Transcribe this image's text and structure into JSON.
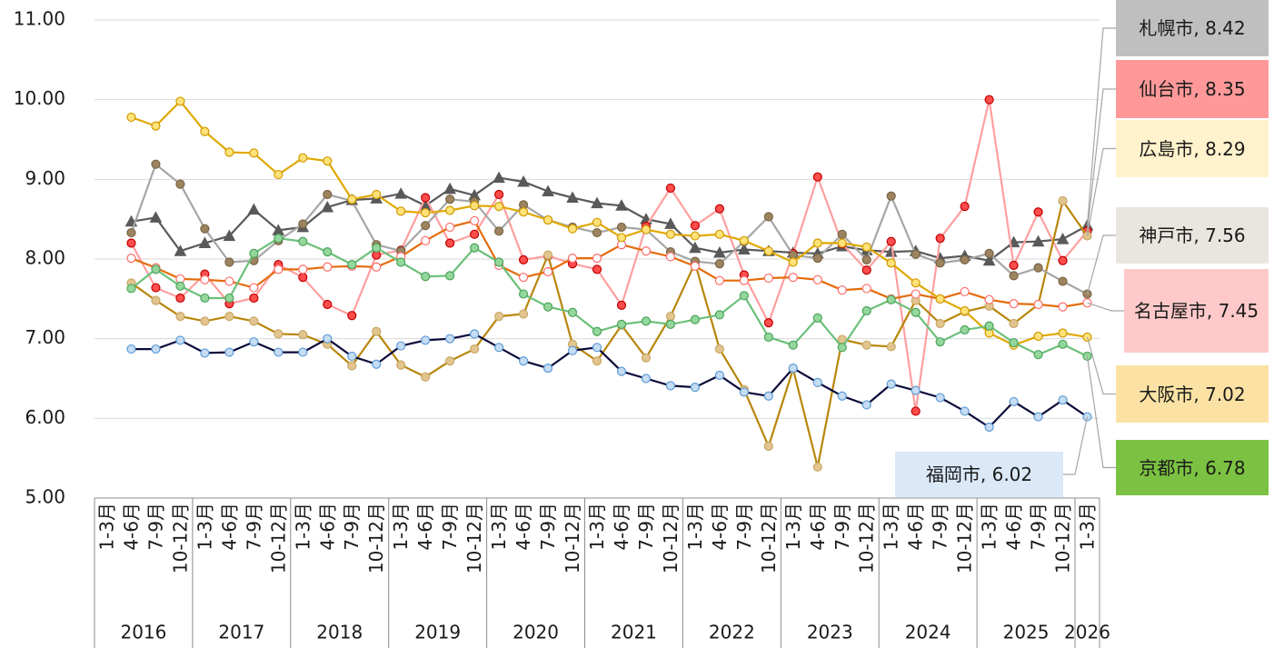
{
  "chart_data": {
    "type": "line",
    "categories": [
      "1-3月",
      "4-6月",
      "7-9月",
      "10-12月",
      "1-3月",
      "4-6月",
      "7-9月",
      "10-12月",
      "1-3月",
      "4-6月",
      "7-9月",
      "10-12月",
      "1-3月",
      "4-6月",
      "7-9月",
      "10-12月",
      "1-3月",
      "4-6月",
      "7-9月",
      "10-12月",
      "1-3月",
      "4-6月",
      "7-9月",
      "10-12月",
      "1-3月",
      "4-6月",
      "7-9月",
      "10-12月",
      "1-3月",
      "4-6月",
      "7-9月",
      "10-12月",
      "1-3月",
      "4-6月",
      "7-9月",
      "10-12月",
      "1-3月",
      "4-6月",
      "7-9月",
      "10-12月",
      "1-3月"
    ],
    "category_groups": [
      {
        "label": "2016",
        "size": 4
      },
      {
        "label": "2017",
        "size": 4
      },
      {
        "label": "2018",
        "size": 4
      },
      {
        "label": "2019",
        "size": 4
      },
      {
        "label": "2020",
        "size": 4
      },
      {
        "label": "2021",
        "size": 4
      },
      {
        "label": "2022",
        "size": 4
      },
      {
        "label": "2023",
        "size": 4
      },
      {
        "label": "2024",
        "size": 4
      },
      {
        "label": "2025",
        "size": 4
      },
      {
        "label": "2026",
        "size": 1
      }
    ],
    "ylim": [
      5,
      11
    ],
    "yticks": [
      {
        "value": 5,
        "label": "5.00"
      },
      {
        "value": 6,
        "label": "6.00"
      },
      {
        "value": 7,
        "label": "7.00"
      },
      {
        "value": 8,
        "label": "8.00"
      },
      {
        "value": 9,
        "label": "9.00"
      },
      {
        "value": 10,
        "label": "10.00"
      },
      {
        "value": 11,
        "label": "11.00"
      }
    ],
    "grid": true,
    "series": [
      {
        "name": "札幌市",
        "label": "札幌市, 8.42",
        "color": "#595959",
        "marker": "triangle",
        "marker_fill": "#595959",
        "marker_stroke": "#595959",
        "label_bg": "#bfbfbf",
        "values": [
          null,
          8.47,
          8.52,
          8.1,
          8.2,
          8.29,
          8.62,
          8.36,
          8.4,
          8.65,
          8.74,
          8.76,
          8.82,
          8.67,
          8.88,
          8.8,
          9.02,
          8.97,
          8.85,
          8.77,
          8.7,
          8.67,
          8.5,
          8.44,
          8.14,
          8.08,
          8.12,
          8.1,
          8.08,
          8.07,
          8.16,
          8.11,
          8.09,
          8.1,
          8.01,
          8.04,
          7.98,
          8.21,
          8.22,
          8.25,
          8.42
        ]
      },
      {
        "name": "仙台市",
        "label": "仙台市, 8.35",
        "color": "#ff9f9f",
        "marker": "circle",
        "marker_fill": "#ff4d4d",
        "marker_stroke": "#c00000",
        "label_bg": "#ff9999",
        "values": [
          null,
          8.2,
          7.64,
          7.51,
          7.81,
          7.44,
          7.51,
          7.93,
          7.77,
          7.43,
          7.29,
          8.05,
          8.11,
          8.77,
          8.2,
          8.31,
          8.81,
          7.99,
          8.04,
          7.94,
          7.87,
          7.42,
          8.41,
          8.89,
          8.42,
          8.63,
          7.8,
          7.2,
          8.07,
          9.03,
          8.19,
          7.86,
          8.22,
          6.09,
          8.26,
          8.66,
          10.0,
          7.92,
          8.59,
          7.98,
          8.35
        ]
      },
      {
        "name": "広島市",
        "label": "広島市, 8.29",
        "color": "#b8860b",
        "marker": "circle",
        "marker_fill": "#e2c48e",
        "marker_stroke": "#c8a868",
        "label_bg": "#fff2cc",
        "values": [
          null,
          7.7,
          7.48,
          7.28,
          7.22,
          7.28,
          7.22,
          7.06,
          7.05,
          6.93,
          6.66,
          7.09,
          6.67,
          6.52,
          6.72,
          6.87,
          7.28,
          7.31,
          8.05,
          6.93,
          6.72,
          7.17,
          6.76,
          7.28,
          7.95,
          6.87,
          6.36,
          5.65,
          6.62,
          5.39,
          6.99,
          6.92,
          6.9,
          7.48,
          7.19,
          7.34,
          7.41,
          7.19,
          7.43,
          8.73,
          8.29
        ]
      },
      {
        "name": "神戸市",
        "label": "神戸市, 7.56",
        "color": "#a6a6a6",
        "marker": "circle",
        "marker_fill": "#9c8460",
        "marker_stroke": "#7a6545",
        "label_bg": "#e9e6df",
        "values": [
          null,
          8.33,
          9.19,
          8.94,
          8.38,
          7.96,
          7.98,
          8.23,
          8.44,
          8.81,
          8.73,
          8.18,
          8.1,
          8.42,
          8.75,
          8.72,
          8.35,
          8.68,
          8.49,
          8.4,
          8.33,
          8.4,
          8.37,
          8.09,
          7.97,
          7.94,
          8.22,
          8.53,
          8.05,
          8.01,
          8.31,
          7.99,
          8.79,
          8.06,
          7.95,
          7.99,
          8.07,
          7.79,
          7.89,
          7.72,
          7.56
        ]
      },
      {
        "name": "名古屋市",
        "label": "名古屋市, 7.45",
        "color": "#e46c0a",
        "marker": "circle",
        "marker_fill": "#ffffff",
        "marker_stroke": "#ff6b6b",
        "label_bg": "#ffc9c9",
        "values": [
          null,
          8.01,
          7.89,
          7.75,
          7.74,
          7.72,
          7.64,
          7.87,
          7.87,
          7.9,
          7.91,
          7.9,
          8.03,
          8.23,
          8.4,
          8.48,
          7.92,
          7.77,
          7.84,
          8.01,
          8.01,
          8.18,
          8.1,
          8.03,
          7.91,
          7.73,
          7.73,
          7.76,
          7.77,
          7.74,
          7.61,
          7.63,
          7.5,
          7.56,
          7.5,
          7.59,
          7.49,
          7.44,
          7.43,
          7.4,
          7.45
        ]
      },
      {
        "name": "大阪市",
        "label": "大阪市, 7.02",
        "color": "#e0a800",
        "marker": "circle",
        "marker_fill": "#ffe27a",
        "marker_stroke": "#d09a00",
        "label_bg": "#fbe2a4",
        "values": [
          null,
          9.78,
          9.67,
          9.98,
          9.6,
          9.34,
          9.33,
          9.06,
          9.27,
          9.23,
          8.75,
          8.81,
          8.6,
          8.58,
          8.61,
          8.67,
          8.66,
          8.59,
          8.49,
          8.38,
          8.46,
          8.27,
          8.37,
          8.31,
          8.29,
          8.31,
          8.23,
          8.1,
          7.96,
          8.2,
          8.2,
          8.15,
          7.95,
          7.7,
          7.5,
          7.35,
          7.07,
          6.92,
          7.03,
          7.07,
          7.02
        ]
      },
      {
        "name": "京都市",
        "label": "京都市, 6.78",
        "color": "#6cc07a",
        "marker": "circle",
        "marker_fill": "#93d79c",
        "marker_stroke": "#4ea35c",
        "label_bg": "#7cc242",
        "values": [
          null,
          7.63,
          7.87,
          7.66,
          7.51,
          7.51,
          8.07,
          8.26,
          8.22,
          8.09,
          7.93,
          8.14,
          7.96,
          7.78,
          7.79,
          8.14,
          7.96,
          7.56,
          7.4,
          7.33,
          7.09,
          7.18,
          7.22,
          7.18,
          7.24,
          7.3,
          7.54,
          7.02,
          6.92,
          7.26,
          6.89,
          7.35,
          7.49,
          7.33,
          6.96,
          7.11,
          7.16,
          6.95,
          6.8,
          6.93,
          6.78
        ]
      },
      {
        "name": "福岡市",
        "label": "福岡市, 6.02",
        "color": "#0b0b3b",
        "marker": "circle",
        "marker_fill": "#c6dcf2",
        "marker_stroke": "#5b9bd5",
        "label_bg": "#dae8f7",
        "values": [
          null,
          6.87,
          6.87,
          6.98,
          6.82,
          6.83,
          6.96,
          6.83,
          6.83,
          7.0,
          6.78,
          6.68,
          6.91,
          6.98,
          7.0,
          7.06,
          6.89,
          6.72,
          6.63,
          6.85,
          6.89,
          6.59,
          6.5,
          6.41,
          6.39,
          6.54,
          6.33,
          6.28,
          6.63,
          6.45,
          6.28,
          6.17,
          6.43,
          6.35,
          6.26,
          6.09,
          5.89,
          6.21,
          6.02,
          6.23,
          6.02
        ]
      }
    ]
  }
}
